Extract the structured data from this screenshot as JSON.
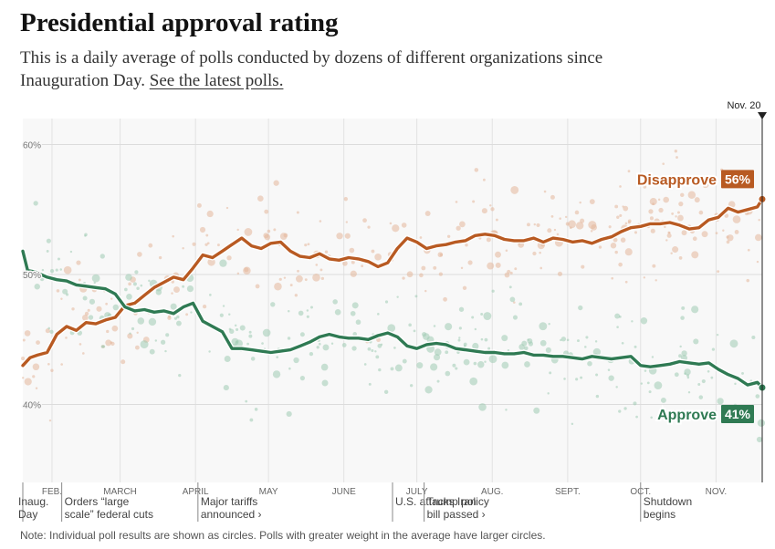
{
  "header": {
    "title": "Presidential approval rating",
    "subtitle_text": "This is a daily average of polls conducted by dozens of different organizations since Inauguration Day.",
    "subtitle_link": "See the latest polls."
  },
  "note": "Note: Individual poll results are shown as circles. Polls with greater weight in the average have larger circles.",
  "colors": {
    "disapprove": "#b85a22",
    "approve": "#2f7a53",
    "dots_disapprove": "#e4b79a",
    "dots_approve": "#9fcbb3",
    "plot_bg": "#f8f8f8"
  },
  "chart_data": {
    "type": "line",
    "title": "Presidential approval rating",
    "y_unit": "%",
    "ylim": [
      34,
      62
    ],
    "yticks": [
      40,
      50,
      60
    ],
    "ytick_labels": [
      "40%",
      "50%",
      "60%"
    ],
    "x_domain": [
      "2025-01-20",
      "2025-11-20"
    ],
    "grid": true,
    "month_ticks": [
      {
        "date": "2025-02-01",
        "label": "FEB."
      },
      {
        "date": "2025-03-01",
        "label": "MARCH"
      },
      {
        "date": "2025-04-01",
        "label": "APRIL"
      },
      {
        "date": "2025-05-01",
        "label": "MAY"
      },
      {
        "date": "2025-06-01",
        "label": "JUNE"
      },
      {
        "date": "2025-07-01",
        "label": "JULY"
      },
      {
        "date": "2025-08-01",
        "label": "AUG."
      },
      {
        "date": "2025-09-01",
        "label": "SEPT."
      },
      {
        "date": "2025-10-01",
        "label": "OCT."
      },
      {
        "date": "2025-11-01",
        "label": "NOV."
      }
    ],
    "current_marker": {
      "date": "2025-11-20",
      "label": "Nov. 20"
    },
    "annotations": [
      {
        "date": "2025-01-20",
        "lines": [
          "Inaug.",
          "Day"
        ]
      },
      {
        "date": "2025-02-05",
        "lines": [
          "Orders “large",
          "scale” federal cuts"
        ]
      },
      {
        "date": "2025-04-02",
        "lines": [
          "Major tariffs",
          "announced ›"
        ]
      },
      {
        "date": "2025-06-21",
        "lines": [
          "U.S. attacks Iran"
        ]
      },
      {
        "date": "2025-07-04",
        "lines": [
          "Trump policy",
          "bill passed ›"
        ]
      },
      {
        "date": "2025-10-01",
        "lines": [
          "Shutdown",
          "begins"
        ]
      }
    ],
    "series": [
      {
        "name": "Disapprove",
        "end_label": "56%",
        "x": [
          "2025-01-20",
          "2025-01-23",
          "2025-01-26",
          "2025-01-30",
          "2025-02-03",
          "2025-02-07",
          "2025-02-11",
          "2025-02-15",
          "2025-02-19",
          "2025-02-23",
          "2025-02-27",
          "2025-03-03",
          "2025-03-07",
          "2025-03-11",
          "2025-03-15",
          "2025-03-19",
          "2025-03-23",
          "2025-03-27",
          "2025-03-31",
          "2025-04-04",
          "2025-04-08",
          "2025-04-12",
          "2025-04-16",
          "2025-04-20",
          "2025-04-24",
          "2025-04-28",
          "2025-05-02",
          "2025-05-06",
          "2025-05-10",
          "2025-05-14",
          "2025-05-18",
          "2025-05-22",
          "2025-05-26",
          "2025-05-30",
          "2025-06-03",
          "2025-06-07",
          "2025-06-11",
          "2025-06-15",
          "2025-06-19",
          "2025-06-23",
          "2025-06-27",
          "2025-07-01",
          "2025-07-05",
          "2025-07-09",
          "2025-07-13",
          "2025-07-17",
          "2025-07-21",
          "2025-07-25",
          "2025-07-29",
          "2025-08-02",
          "2025-08-06",
          "2025-08-10",
          "2025-08-14",
          "2025-08-18",
          "2025-08-22",
          "2025-08-26",
          "2025-08-30",
          "2025-09-03",
          "2025-09-07",
          "2025-09-11",
          "2025-09-15",
          "2025-09-19",
          "2025-09-23",
          "2025-09-27",
          "2025-10-01",
          "2025-10-05",
          "2025-10-09",
          "2025-10-13",
          "2025-10-17",
          "2025-10-21",
          "2025-10-25",
          "2025-10-29",
          "2025-11-02",
          "2025-11-06",
          "2025-11-10",
          "2025-11-14",
          "2025-11-18",
          "2025-11-20"
        ],
        "values": [
          43.0,
          43.6,
          43.8,
          44.0,
          45.4,
          46.0,
          45.7,
          46.3,
          46.2,
          46.5,
          46.7,
          47.6,
          47.8,
          48.4,
          49.0,
          49.4,
          49.8,
          49.6,
          50.5,
          51.5,
          51.3,
          51.8,
          52.3,
          52.8,
          52.2,
          52.0,
          52.4,
          52.5,
          51.8,
          51.4,
          51.3,
          51.6,
          51.2,
          51.1,
          51.3,
          51.2,
          51.0,
          50.6,
          50.9,
          52.0,
          52.8,
          52.5,
          52.0,
          52.2,
          52.3,
          52.5,
          52.6,
          53.0,
          53.1,
          53.0,
          52.7,
          52.6,
          52.6,
          52.8,
          52.5,
          52.8,
          52.7,
          52.5,
          52.6,
          52.4,
          52.7,
          52.9,
          53.3,
          53.6,
          53.7,
          53.9,
          53.9,
          54.0,
          53.8,
          53.5,
          53.6,
          54.2,
          54.4,
          55.1,
          54.8,
          55.0,
          55.2,
          55.8
        ]
      },
      {
        "name": "Approve",
        "end_label": "41%",
        "x": [
          "2025-01-20",
          "2025-01-22",
          "2025-01-25",
          "2025-01-30",
          "2025-02-03",
          "2025-02-07",
          "2025-02-11",
          "2025-02-15",
          "2025-02-19",
          "2025-02-23",
          "2025-02-27",
          "2025-03-03",
          "2025-03-07",
          "2025-03-11",
          "2025-03-15",
          "2025-03-19",
          "2025-03-23",
          "2025-03-27",
          "2025-03-31",
          "2025-04-04",
          "2025-04-08",
          "2025-04-12",
          "2025-04-16",
          "2025-04-20",
          "2025-04-24",
          "2025-04-28",
          "2025-05-02",
          "2025-05-06",
          "2025-05-10",
          "2025-05-14",
          "2025-05-18",
          "2025-05-22",
          "2025-05-26",
          "2025-05-30",
          "2025-06-03",
          "2025-06-07",
          "2025-06-11",
          "2025-06-15",
          "2025-06-19",
          "2025-06-23",
          "2025-06-27",
          "2025-07-01",
          "2025-07-05",
          "2025-07-09",
          "2025-07-13",
          "2025-07-17",
          "2025-07-21",
          "2025-07-25",
          "2025-07-29",
          "2025-08-02",
          "2025-08-06",
          "2025-08-10",
          "2025-08-14",
          "2025-08-18",
          "2025-08-22",
          "2025-08-26",
          "2025-08-30",
          "2025-09-03",
          "2025-09-07",
          "2025-09-11",
          "2025-09-15",
          "2025-09-19",
          "2025-09-23",
          "2025-09-27",
          "2025-10-01",
          "2025-10-05",
          "2025-10-09",
          "2025-10-13",
          "2025-10-17",
          "2025-10-21",
          "2025-10-25",
          "2025-10-29",
          "2025-11-02",
          "2025-11-06",
          "2025-11-10",
          "2025-11-14",
          "2025-11-18",
          "2025-11-20"
        ],
        "values": [
          51.8,
          50.3,
          50.2,
          49.8,
          49.6,
          49.5,
          49.2,
          49.1,
          49.0,
          48.9,
          48.5,
          47.5,
          47.2,
          47.3,
          47.1,
          47.2,
          47.0,
          47.5,
          47.8,
          46.4,
          46.0,
          45.6,
          44.3,
          44.3,
          44.2,
          44.1,
          44.0,
          44.1,
          44.2,
          44.5,
          44.8,
          45.2,
          45.4,
          45.2,
          45.1,
          45.1,
          45.0,
          45.3,
          45.5,
          45.2,
          44.5,
          44.3,
          44.6,
          44.7,
          44.6,
          44.3,
          44.2,
          44.1,
          44.0,
          44.0,
          43.9,
          43.9,
          44.0,
          43.8,
          43.8,
          43.7,
          43.7,
          43.6,
          43.5,
          43.7,
          43.6,
          43.5,
          43.6,
          43.7,
          43.0,
          42.9,
          43.0,
          43.1,
          43.3,
          43.2,
          43.1,
          43.2,
          42.7,
          42.3,
          42.0,
          41.5,
          41.7,
          41.3
        ]
      }
    ]
  }
}
